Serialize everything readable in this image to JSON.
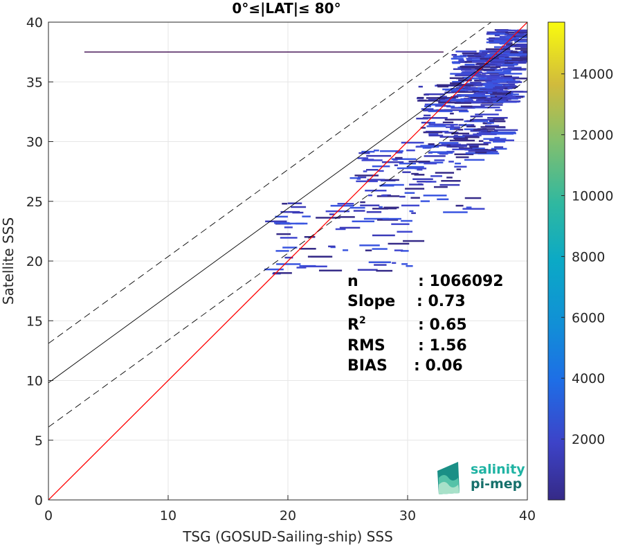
{
  "chart_data": {
    "type": "heatmap",
    "title": "0°≤|LAT|≤ 80°",
    "xlabel": "TSG (GOSUD-Sailing-ship) SSS",
    "ylabel": "Satellite SSS",
    "xlim": [
      0,
      40
    ],
    "ylim": [
      0,
      40
    ],
    "xticks": [
      0,
      10,
      20,
      30,
      40
    ],
    "yticks": [
      0,
      5,
      10,
      15,
      20,
      25,
      30,
      35,
      40
    ],
    "grid": true,
    "colorbar": {
      "range": [
        0,
        15700
      ],
      "ticks": [
        2000,
        4000,
        6000,
        8000,
        10000,
        12000,
        14000
      ],
      "colormap": "parula"
    },
    "lines": [
      {
        "name": "one-to-one",
        "color": "#ff0000",
        "style": "solid",
        "x": [
          0,
          40
        ],
        "y": [
          0,
          40
        ]
      },
      {
        "name": "regression",
        "color": "#000000",
        "style": "solid",
        "x": [
          0,
          40
        ],
        "y": [
          9.8,
          39.0
        ]
      },
      {
        "name": "upper-bound",
        "color": "#000000",
        "style": "dashed",
        "x": [
          0,
          40
        ],
        "y": [
          13.1,
          42.2
        ]
      },
      {
        "name": "lower-bound",
        "color": "#000000",
        "style": "dashed",
        "x": [
          0,
          40
        ],
        "y": [
          6.1,
          35.2
        ]
      }
    ],
    "horizontal_streak": {
      "x": [
        3,
        33
      ],
      "y": 37.5
    },
    "density_clusters": [
      {
        "x_center": 36,
        "y_center": 35.5,
        "x_spread": 2.5,
        "y_spread": 2.2,
        "count": 260
      },
      {
        "x_center": 34,
        "y_center": 32,
        "x_spread": 3.5,
        "y_spread": 3,
        "count": 180
      },
      {
        "x_center": 30,
        "y_center": 27,
        "x_spread": 5,
        "y_spread": 3,
        "count": 90
      },
      {
        "x_center": 24,
        "y_center": 22,
        "x_spread": 6,
        "y_spread": 3,
        "count": 70
      },
      {
        "x_center": 38,
        "y_center": 38,
        "x_spread": 1.5,
        "y_spread": 1.5,
        "count": 90
      }
    ],
    "stats": [
      {
        "label": "n",
        "value": ": 1066092"
      },
      {
        "label": "Slope",
        "value": ": 0.73"
      },
      {
        "label": "R",
        "sup": "2",
        "value": ": 0.65"
      },
      {
        "label": "RMS",
        "value": ": 1.56"
      },
      {
        "label": "BIAS",
        "value": ": 0.06"
      }
    ]
  },
  "logo": {
    "line1": "salinity",
    "line2": "pi-mep"
  }
}
